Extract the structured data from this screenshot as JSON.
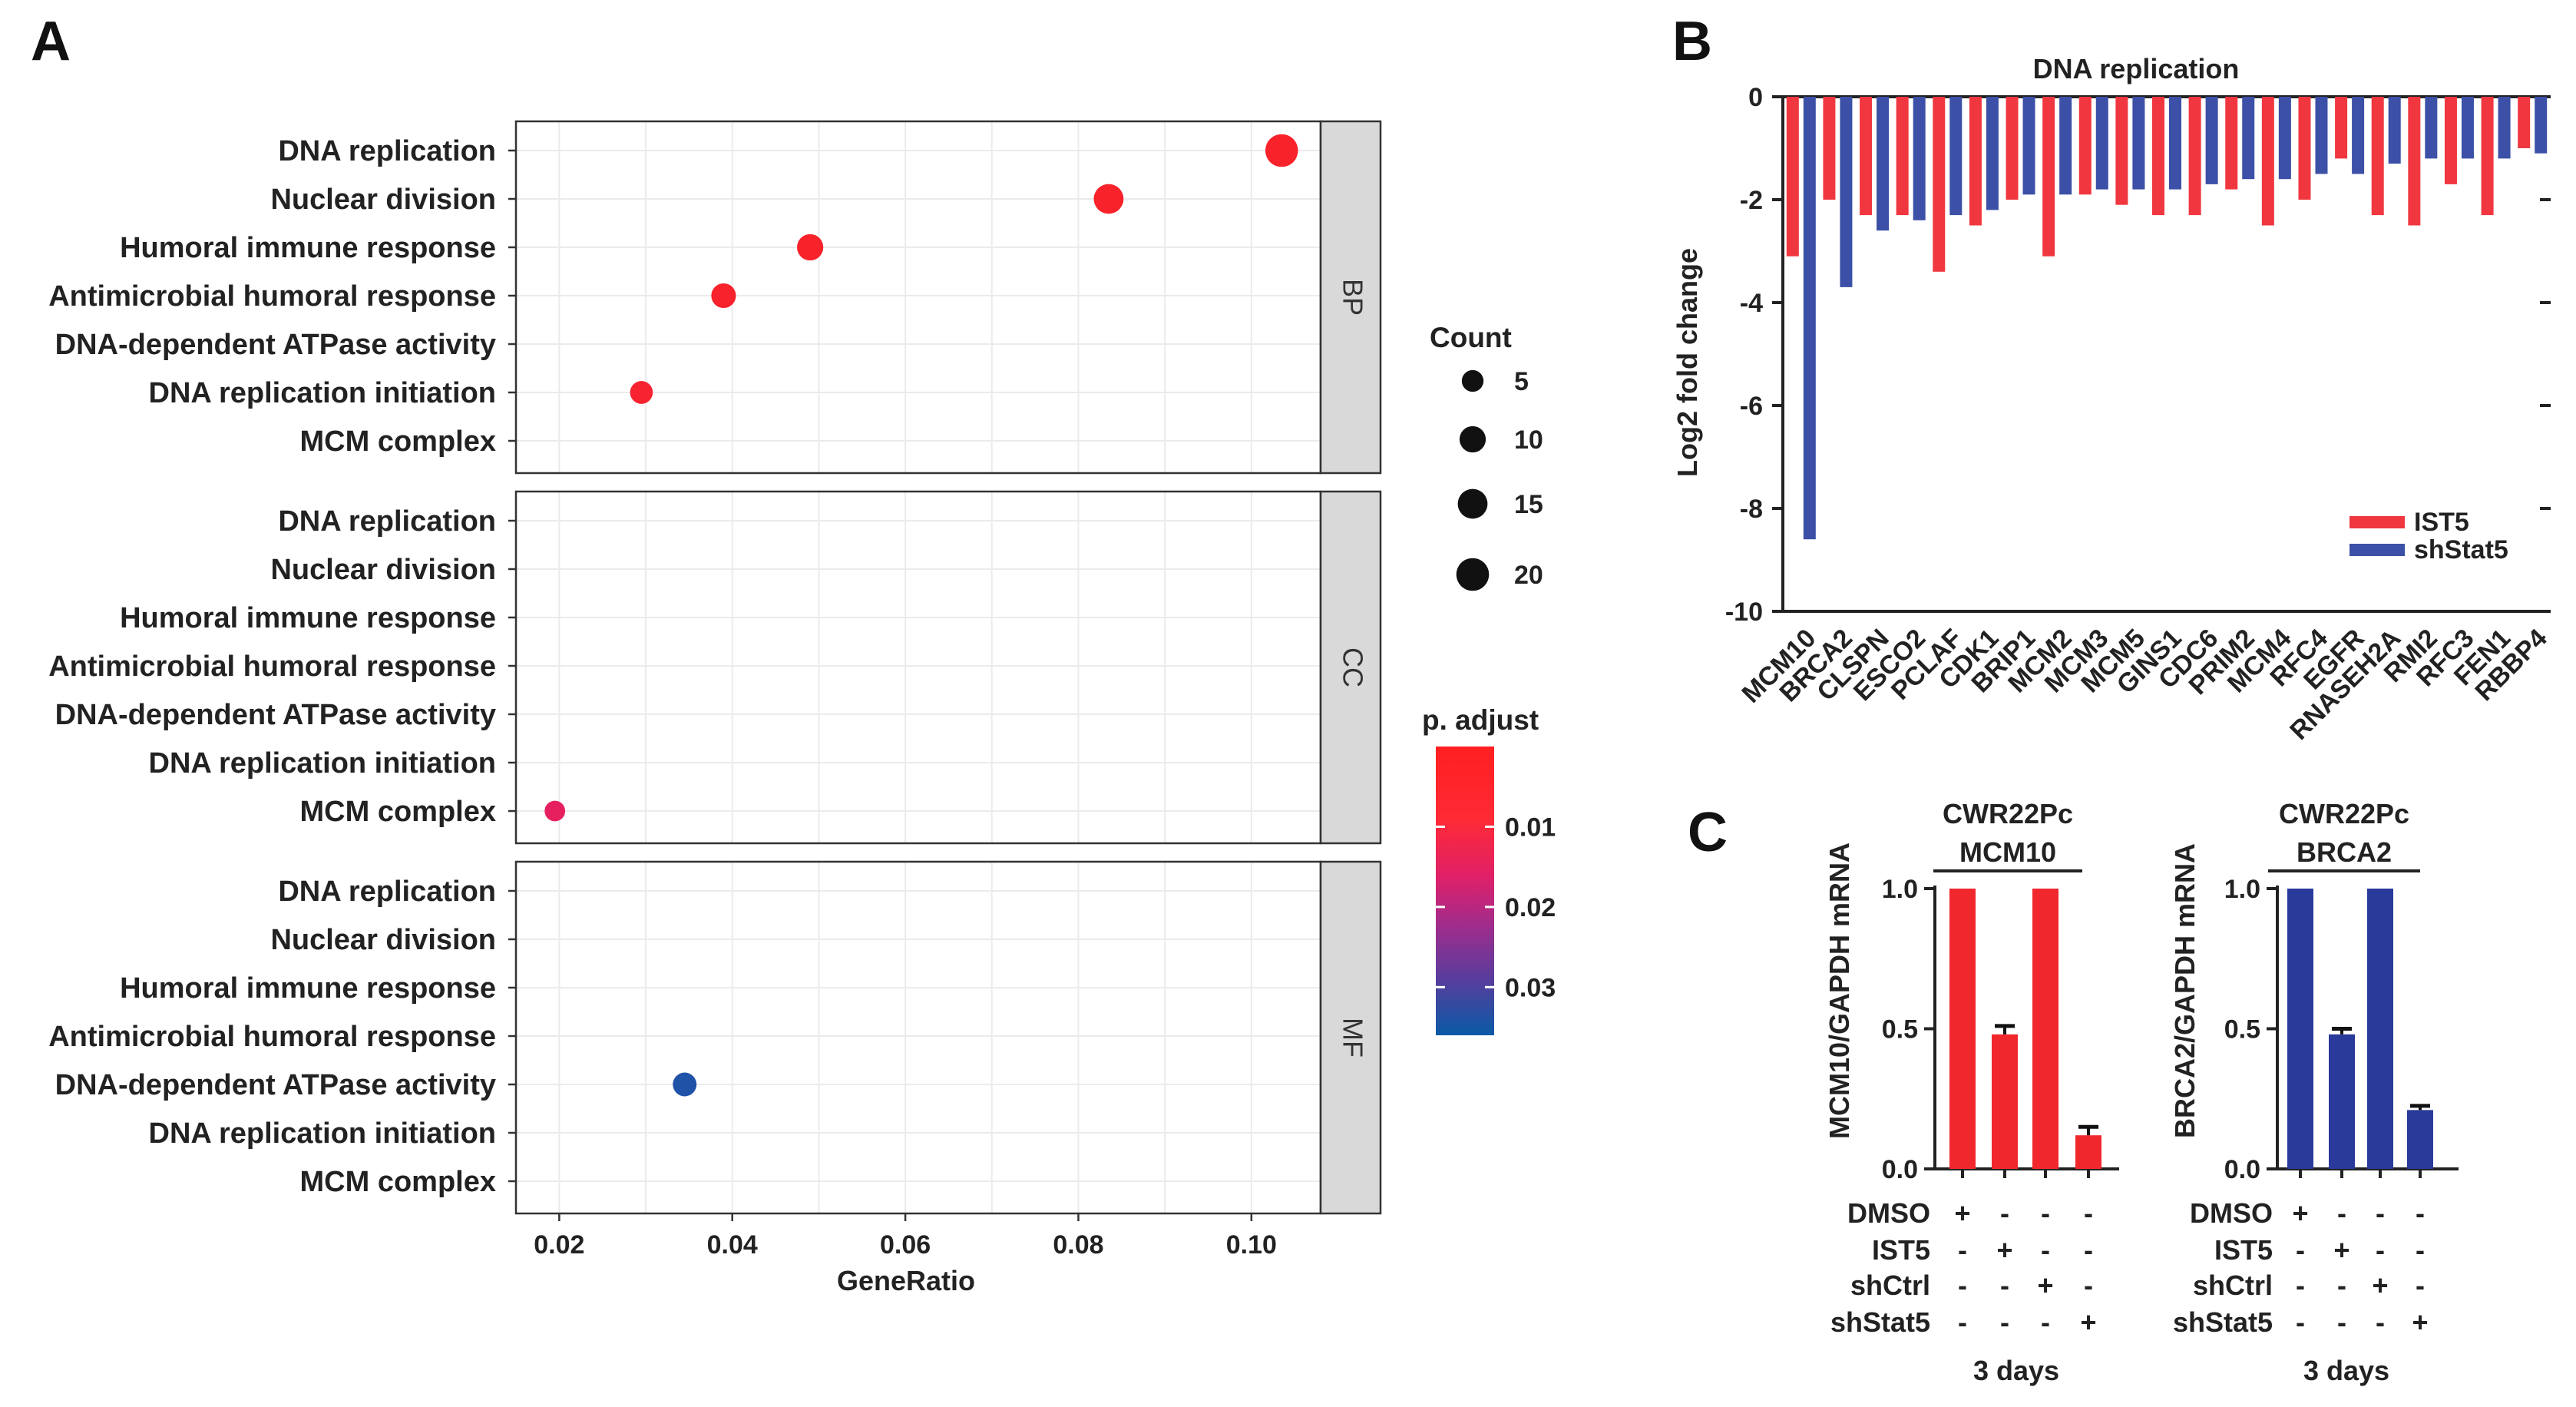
{
  "panel_labels": {
    "a": "A",
    "b": "B",
    "c": "C"
  },
  "chart_data": [
    {
      "type": "scatter",
      "panel": "A",
      "subtype": "dot plot (GO enrichment, faceted)",
      "xlabel": "GeneRatio",
      "x_ticks": [
        "0.02",
        "0.04",
        "0.06",
        "0.08",
        "0.10"
      ],
      "xlim": [
        0.015,
        0.108
      ],
      "terms": [
        "DNA replication",
        "Nuclear division",
        "Humoral immune response",
        "Antimicrobial humoral response",
        "DNA-dependent ATPase activity",
        "DNA replication initiation",
        "MCM complex"
      ],
      "facets": [
        {
          "name": "BP",
          "points": [
            {
              "term": "DNA replication",
              "gene_ratio": 0.1035,
              "count": 20,
              "p_adjust": 0.001,
              "color": "#f8222a"
            },
            {
              "term": "Nuclear division",
              "gene_ratio": 0.0835,
              "count": 15,
              "p_adjust": 0.001,
              "color": "#f8222a"
            },
            {
              "term": "Humoral immune response",
              "gene_ratio": 0.049,
              "count": 10,
              "p_adjust": 0.001,
              "color": "#f8222a"
            },
            {
              "term": "Antimicrobial humoral response",
              "gene_ratio": 0.039,
              "count": 8,
              "p_adjust": 0.002,
              "color": "#f7222b"
            },
            {
              "term": "DNA replication initiation",
              "gene_ratio": 0.0295,
              "count": 6,
              "p_adjust": 0.003,
              "color": "#f72330"
            }
          ]
        },
        {
          "name": "CC",
          "points": [
            {
              "term": "MCM complex",
              "gene_ratio": 0.0195,
              "count": 4,
              "p_adjust": 0.012,
              "color": "#e6205e"
            }
          ]
        },
        {
          "name": "MF",
          "points": [
            {
              "term": "DNA-dependent ATPase activity",
              "gene_ratio": 0.0345,
              "count": 7,
              "p_adjust": 0.036,
              "color": "#1f53a8"
            }
          ]
        }
      ],
      "size_legend": {
        "title": "Count",
        "values": [
          5,
          10,
          15,
          20
        ],
        "labels": [
          "5",
          "10",
          "15",
          "20"
        ]
      },
      "color_legend": {
        "title": "p. adjust",
        "labels": [
          "0.01",
          "0.02",
          "0.03"
        ],
        "range": [
          0.0,
          0.036
        ],
        "low_color": "#ff1f20",
        "high_color": "#0a5aa6"
      }
    },
    {
      "type": "bar",
      "panel": "B",
      "title": "DNA replication",
      "ylabel": "Log2 fold change",
      "ylim": [
        -10,
        0
      ],
      "y_ticks": [
        "0",
        "-2",
        "-4",
        "-6",
        "-8",
        "-10"
      ],
      "categories": [
        "MCM10",
        "BRCA2",
        "CLSPN",
        "ESCO2",
        "PCLAF",
        "CDK1",
        "BRIP1",
        "MCM2",
        "MCM3",
        "MCM5",
        "GINS1",
        "CDC6",
        "PRIM2",
        "MCM4",
        "RFC4",
        "EGFR",
        "RNASEH2A",
        "RMI2",
        "RFC3",
        "FEN1",
        "RBBP4"
      ],
      "series": [
        {
          "name": "IST5",
          "color": "#f0373f",
          "values": [
            -3.1,
            -2.0,
            -2.3,
            -2.3,
            -3.4,
            -2.5,
            -2.0,
            -3.1,
            -1.9,
            -2.1,
            -2.3,
            -2.3,
            -1.8,
            -2.5,
            -2.0,
            -1.2,
            -2.3,
            -2.5,
            -1.7,
            -2.3,
            -1.0
          ]
        },
        {
          "name": "shStat5",
          "color": "#3b50a6",
          "values": [
            -8.6,
            -3.7,
            -2.6,
            -2.4,
            -2.3,
            -2.2,
            -1.9,
            -1.9,
            -1.8,
            -1.8,
            -1.8,
            -1.7,
            -1.6,
            -1.6,
            -1.5,
            -1.5,
            -1.3,
            -1.2,
            -1.2,
            -1.2,
            -1.1
          ]
        }
      ]
    },
    {
      "type": "bar",
      "panel": "C-left",
      "title_lines": [
        "CWR22Pc",
        "MCM10"
      ],
      "ylabel": "MCM10/GAPDH mRNA",
      "ylim": [
        0,
        1.0
      ],
      "y_ticks": [
        "0.0",
        "0.5",
        "1.0"
      ],
      "color": "#f0282e",
      "categories": [
        "DMSO",
        "IST5",
        "shCtrl",
        "shStat5"
      ],
      "values": [
        1.0,
        0.48,
        1.0,
        0.12
      ],
      "errors": [
        0,
        0.03,
        0,
        0.03
      ],
      "footer": "3 days"
    },
    {
      "type": "bar",
      "panel": "C-right",
      "title_lines": [
        "CWR22Pc",
        "BRCA2"
      ],
      "ylabel": "BRCA2/GAPDH mRNA",
      "ylim": [
        0,
        1.0
      ],
      "y_ticks": [
        "0.0",
        "0.5",
        "1.0"
      ],
      "color": "#2a3a9a",
      "categories": [
        "DMSO",
        "IST5",
        "shCtrl",
        "shStat5"
      ],
      "values": [
        1.0,
        0.48,
        1.0,
        0.21
      ],
      "errors": [
        0,
        0.02,
        0,
        0.015
      ],
      "footer": "3 days"
    }
  ],
  "treatments": {
    "rows": [
      "DMSO",
      "IST5",
      "shCtrl",
      "shStat5"
    ],
    "signs": [
      [
        "+",
        "-",
        "-",
        "-"
      ],
      [
        "-",
        "+",
        "-",
        "-"
      ],
      [
        "-",
        "-",
        "+",
        "-"
      ],
      [
        "-",
        "-",
        "-",
        "+"
      ]
    ]
  }
}
